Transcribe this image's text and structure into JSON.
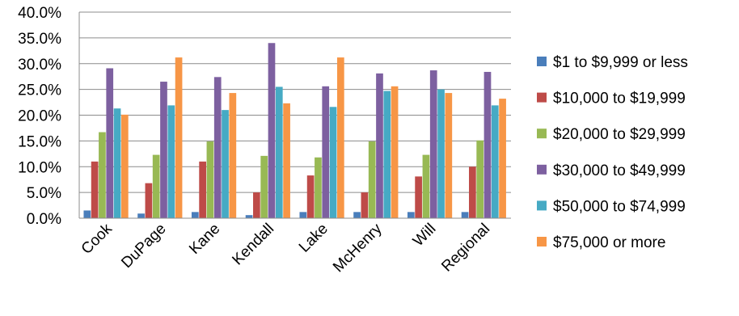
{
  "chart_data": {
    "type": "bar",
    "title": "",
    "xlabel": "",
    "ylabel": "",
    "ylim": [
      0,
      40
    ],
    "y_ticks": [
      "0.0%",
      "5.0%",
      "10.0%",
      "15.0%",
      "20.0%",
      "25.0%",
      "30.0%",
      "35.0%",
      "40.0%"
    ],
    "grid": true,
    "legend_position": "right",
    "categories": [
      "Cook",
      "DuPage",
      "Kane",
      "Kendall",
      "Lake",
      "McHenry",
      "Will",
      "Regional"
    ],
    "series": [
      {
        "name": "$1 to $9,999 or less",
        "color": "#4a7ebb",
        "values": [
          1.5,
          0.9,
          1.2,
          0.6,
          1.2,
          1.2,
          1.2,
          1.2
        ]
      },
      {
        "name": "$10,000 to $19,999",
        "color": "#be4b48",
        "values": [
          11.0,
          6.8,
          11.0,
          5.0,
          8.3,
          5.0,
          8.1,
          10.0
        ]
      },
      {
        "name": "$20,000 to $29,999",
        "color": "#98b954",
        "values": [
          16.7,
          12.3,
          14.9,
          12.1,
          11.8,
          14.9,
          12.3,
          15.1
        ]
      },
      {
        "name": "$30,000 to $49,999",
        "color": "#7d60a0",
        "values": [
          29.1,
          26.5,
          27.4,
          34.0,
          25.6,
          28.1,
          28.7,
          28.4
        ]
      },
      {
        "name": "$50,000 to $74,999",
        "color": "#46aac4",
        "values": [
          21.3,
          21.9,
          21.0,
          25.5,
          21.6,
          24.7,
          25.0,
          21.9
        ]
      },
      {
        "name": "$75,000 or more",
        "color": "#f79646",
        "values": [
          20.1,
          31.2,
          24.3,
          22.3,
          31.2,
          25.6,
          24.3,
          23.2
        ]
      }
    ]
  }
}
